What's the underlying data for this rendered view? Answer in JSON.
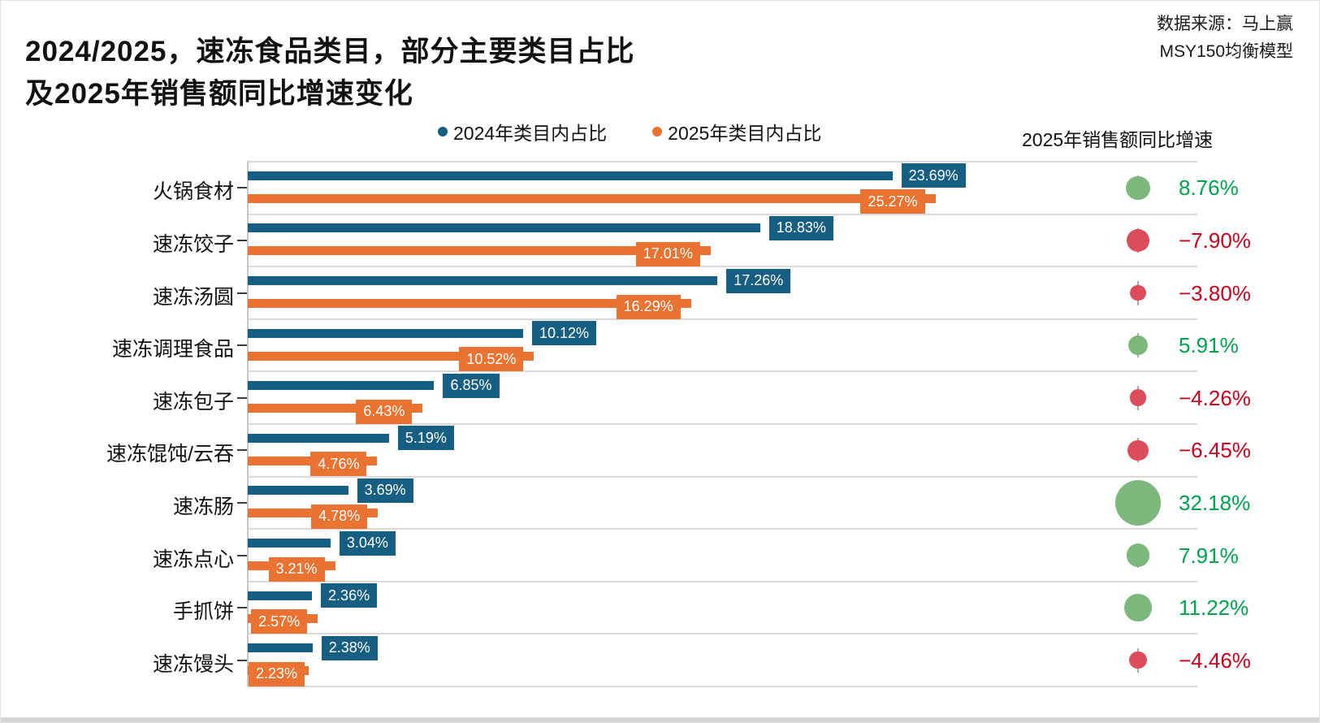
{
  "title": {
    "line1": "2024/2025，速冻食品类目，部分主要类目占比",
    "line2": "及2025年销售额同比增速变化"
  },
  "source": {
    "line1": "数据来源：马上赢",
    "line2": "MSY150均衡模型"
  },
  "colors": {
    "series_2024": "#175F82",
    "series_2025": "#EA7332",
    "growth_positive_circle": "#7CB87E",
    "growth_negative_circle": "#DC4C5B",
    "growth_positive_text": "#00A14E",
    "growth_negative_text": "#C9001B",
    "separator": "#d9d9d9"
  },
  "chart_data": {
    "type": "bar",
    "orientation": "horizontal",
    "title": "2024/2025，速冻食品类目，部分主要类目占比及2025年销售额同比增速变化",
    "categories": [
      "火锅食材",
      "速冻饺子",
      "速冻汤圆",
      "速冻调理食品",
      "速冻包子",
      "速冻馄饨/云吞",
      "速冻肠",
      "速冻点心",
      "手抓饼",
      "速冻馒头"
    ],
    "series": [
      {
        "name": "2024年类目内占比",
        "color": "#175F82",
        "values": [
          23.69,
          18.83,
          17.26,
          10.12,
          6.85,
          5.19,
          3.69,
          3.04,
          2.36,
          2.38
        ],
        "labels": [
          "23.69%",
          "18.83%",
          "17.26%",
          "10.12%",
          "6.85%",
          "5.19%",
          "3.69%",
          "3.04%",
          "2.36%",
          "2.38%"
        ]
      },
      {
        "name": "2025年类目内占比",
        "color": "#EA7332",
        "values": [
          25.27,
          17.01,
          16.29,
          10.52,
          6.43,
          4.76,
          4.78,
          3.21,
          2.57,
          2.23
        ],
        "labels": [
          "25.27%",
          "17.01%",
          "16.29%",
          "10.52%",
          "6.43%",
          "4.76%",
          "4.78%",
          "3.21%",
          "2.57%",
          "2.23%"
        ]
      }
    ],
    "growth": {
      "name": "2025年销售额同比增速",
      "values": [
        8.76,
        -7.9,
        -3.8,
        5.91,
        -4.26,
        -6.45,
        32.18,
        7.91,
        11.22,
        -4.46
      ],
      "labels": [
        "8.76%",
        "−7.90%",
        "−3.80%",
        "5.91%",
        "−4.26%",
        "−6.45%",
        "32.18%",
        "7.91%",
        "11.22%",
        "−4.46%"
      ],
      "positive_circle_color": "#7CB87E",
      "negative_circle_color": "#DC4C5B",
      "positive_text_color": "#00A14E",
      "negative_text_color": "#C9001B"
    },
    "xlim": [
      0,
      28
    ],
    "grid": "row-separators-only",
    "legend_position": "top-center",
    "value_labels": "on-bar-boxes"
  }
}
